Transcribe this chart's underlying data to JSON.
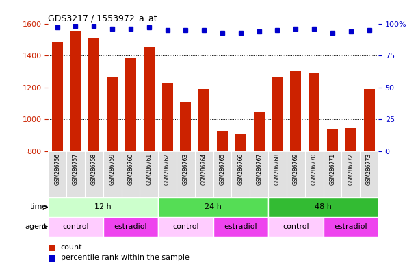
{
  "title": "GDS3217 / 1553972_a_at",
  "samples": [
    "GSM286756",
    "GSM286757",
    "GSM286758",
    "GSM286759",
    "GSM286760",
    "GSM286761",
    "GSM286762",
    "GSM286763",
    "GSM286764",
    "GSM286765",
    "GSM286766",
    "GSM286767",
    "GSM286768",
    "GSM286769",
    "GSM286770",
    "GSM286771",
    "GSM286772",
    "GSM286773"
  ],
  "counts": [
    1480,
    1555,
    1510,
    1265,
    1385,
    1455,
    1230,
    1110,
    1190,
    930,
    910,
    1050,
    1265,
    1305,
    1290,
    940,
    945,
    1190
  ],
  "percentiles": [
    97,
    98,
    98,
    96,
    96,
    97,
    95,
    95,
    95,
    93,
    93,
    94,
    95,
    96,
    96,
    93,
    94,
    95
  ],
  "ylim_left": [
    800,
    1600
  ],
  "ylim_right": [
    0,
    100
  ],
  "yticks_left": [
    800,
    1000,
    1200,
    1400,
    1600
  ],
  "yticks_right": [
    0,
    25,
    50,
    75,
    100
  ],
  "bar_color": "#cc2200",
  "dot_color": "#0000cc",
  "bar_width": 0.6,
  "time_groups": [
    {
      "label": "12 h",
      "start": 0,
      "end": 5,
      "color": "#ccffcc"
    },
    {
      "label": "24 h",
      "start": 6,
      "end": 11,
      "color": "#55dd55"
    },
    {
      "label": "48 h",
      "start": 12,
      "end": 17,
      "color": "#33bb33"
    }
  ],
  "agent_groups": [
    {
      "label": "control",
      "start": 0,
      "end": 2,
      "color": "#ffccff"
    },
    {
      "label": "estradiol",
      "start": 3,
      "end": 5,
      "color": "#ee44ee"
    },
    {
      "label": "control",
      "start": 6,
      "end": 8,
      "color": "#ffccff"
    },
    {
      "label": "estradiol",
      "start": 9,
      "end": 11,
      "color": "#ee44ee"
    },
    {
      "label": "control",
      "start": 12,
      "end": 14,
      "color": "#ffccff"
    },
    {
      "label": "estradiol",
      "start": 15,
      "end": 17,
      "color": "#ee44ee"
    }
  ],
  "legend_count_color": "#cc2200",
  "legend_dot_color": "#0000cc",
  "plot_bg": "white",
  "grid_color": "black",
  "left_axis_color": "#cc2200",
  "right_axis_color": "#0000cc",
  "xlabel_bg": "#e0e0e0"
}
